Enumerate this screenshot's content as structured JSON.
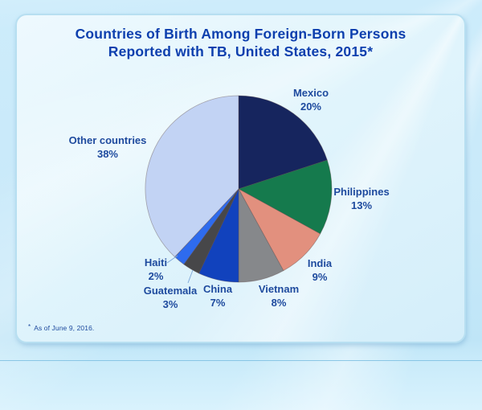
{
  "header": {
    "title_lines": [
      "Countries of Birth Among Foreign-Born Persons",
      "Reported with TB, United States, 2015*"
    ]
  },
  "footnote": {
    "marker": "*",
    "text": "As of June 9, 2016."
  },
  "chart_data": {
    "type": "pie",
    "title": "Countries of Birth Among Foreign-Born Persons Reported with TB, United States, 2015*",
    "categories": [
      "Mexico",
      "Philippines",
      "India",
      "Vietnam",
      "China",
      "Guatemala",
      "Haiti",
      "Other countries"
    ],
    "values": [
      20,
      13,
      9,
      8,
      7,
      3,
      2,
      38
    ],
    "unit": "%",
    "colors": [
      "#16255e",
      "#157a4d",
      "#e2907e",
      "#86888b",
      "#1142bd",
      "#474749",
      "#2e6bee",
      "#c2d3f4"
    ],
    "start_angle_deg": 0,
    "direction": "clockwise",
    "labeling": "direct labels outside slices with category name and percent",
    "leader_lines": [
      "Haiti",
      "Guatemala"
    ],
    "legend_position": "none"
  },
  "style": {
    "title_color": "#0d3fae",
    "label_color": "#1e4a9e",
    "background_color": "#c8e9f9",
    "card_color": "#e2f5fc"
  }
}
